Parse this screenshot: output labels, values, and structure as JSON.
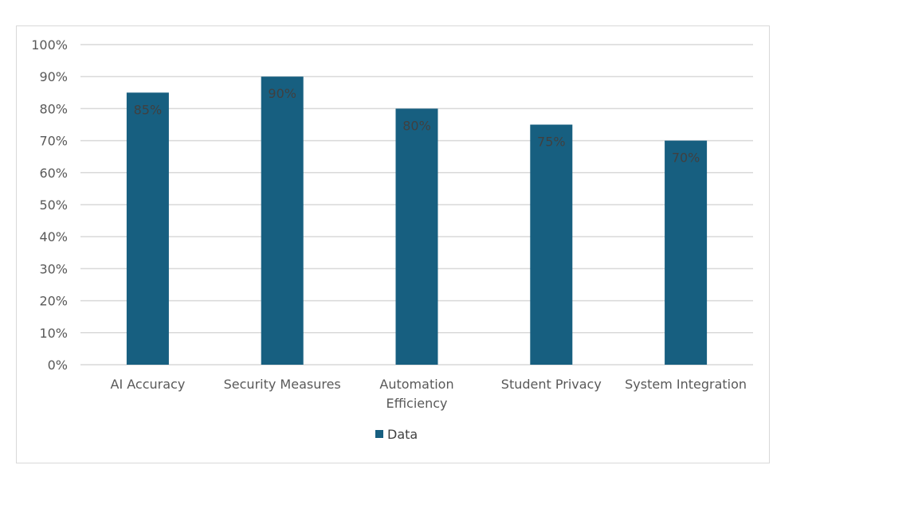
{
  "chart_data": {
    "type": "bar",
    "categories": [
      "AI Accuracy",
      "Security Measures",
      "Automation Efficiency",
      "Student Privacy",
      "System Integration"
    ],
    "category_lines": [
      [
        "AI Accuracy"
      ],
      [
        "Security Measures"
      ],
      [
        "Automation",
        "Efficiency"
      ],
      [
        "Student Privacy"
      ],
      [
        "System Integration"
      ]
    ],
    "series": [
      {
        "name": "Data",
        "values": [
          0.85,
          0.9,
          0.8,
          0.75,
          0.7
        ],
        "color": "#175f80"
      }
    ],
    "data_labels": [
      "85%",
      "90%",
      "80%",
      "75%",
      "70%"
    ],
    "y_ticks": [
      0,
      0.1,
      0.2,
      0.3,
      0.4,
      0.5,
      0.6,
      0.7,
      0.8,
      0.9,
      1.0
    ],
    "y_tick_labels": [
      "0%",
      "10%",
      "20%",
      "30%",
      "40%",
      "50%",
      "60%",
      "70%",
      "80%",
      "90%",
      "100%"
    ],
    "ylim": [
      0,
      1.0
    ],
    "grid": true,
    "legend_position": "bottom",
    "colors": {
      "bar": "#175f80",
      "grid": "#d9d9d9",
      "axis_text": "#595959"
    }
  }
}
